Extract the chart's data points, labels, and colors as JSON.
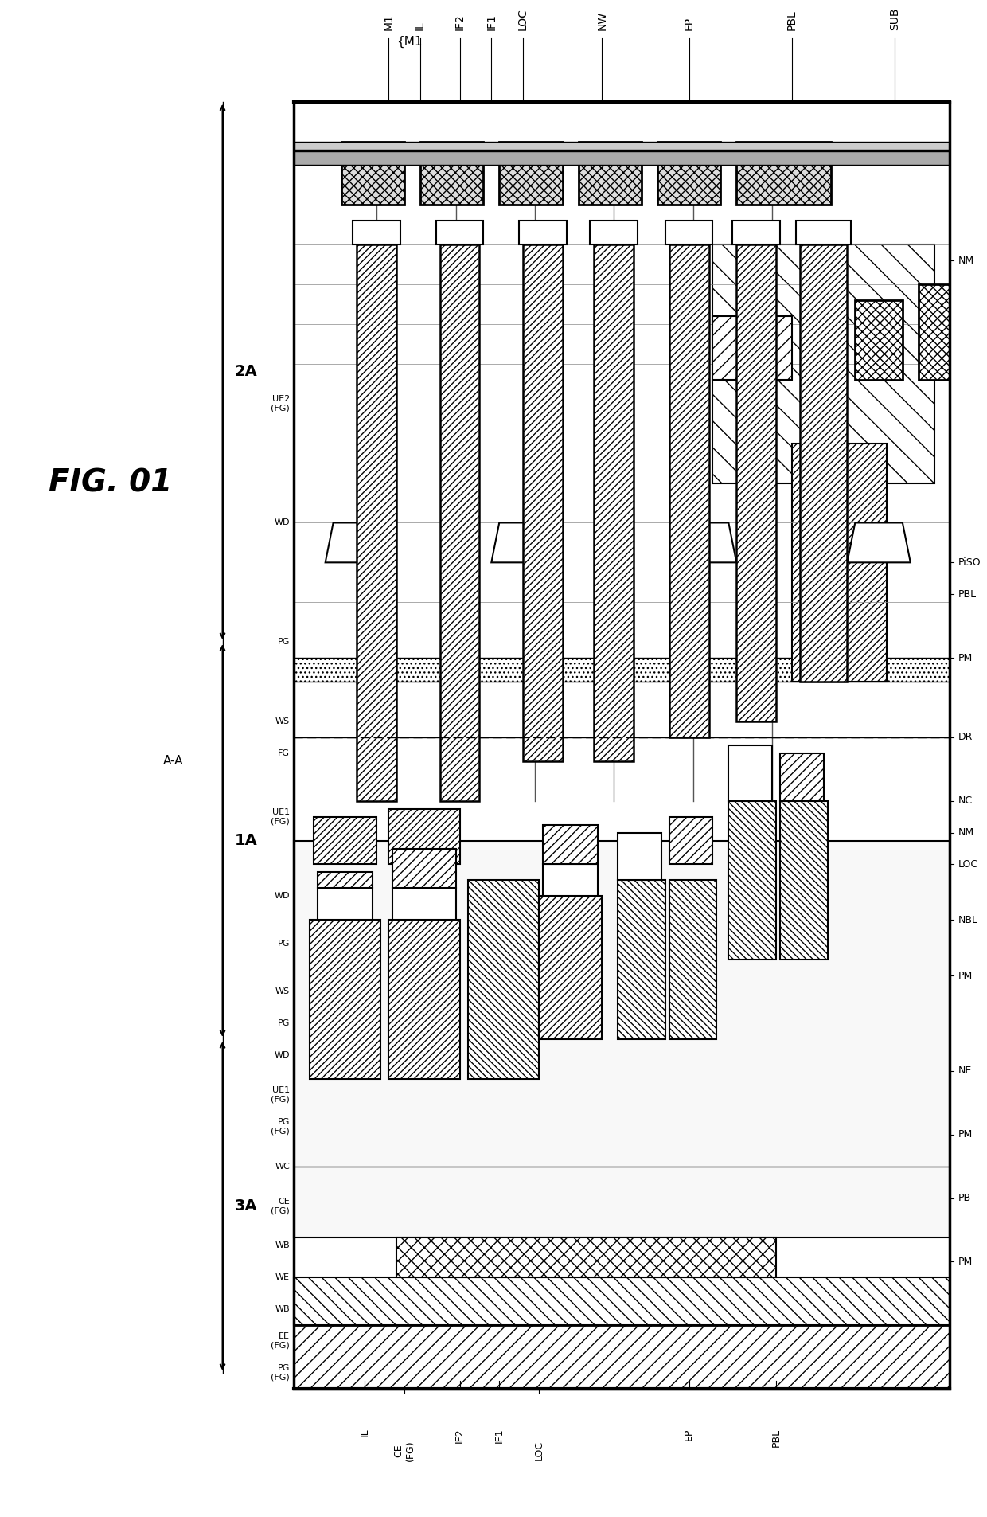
{
  "title": "FIG. 01",
  "bg_color": "#ffffff",
  "line_color": "#000000",
  "hatch_color": "#000000",
  "fig_width": 12.4,
  "fig_height": 19.05,
  "top_labels": [
    "M1",
    "IL",
    "IF2",
    "IF1",
    "LOC",
    "NW",
    "EP",
    "PBL",
    "SUB"
  ],
  "bottom_labels": [
    "IL",
    "CE\n(FG)",
    "IF2",
    "IF1",
    "LOC",
    "EP",
    "PBL"
  ],
  "right_labels": [
    "NM",
    "PiSO",
    "PBL",
    "PM",
    "DR",
    "NC",
    "NM",
    "LOC",
    "NBL",
    "PM",
    "NE",
    "PM",
    "PB",
    "PM"
  ],
  "left_arrow_labels": [
    "2A",
    "1A",
    "3A"
  ],
  "section_label": "A-A"
}
